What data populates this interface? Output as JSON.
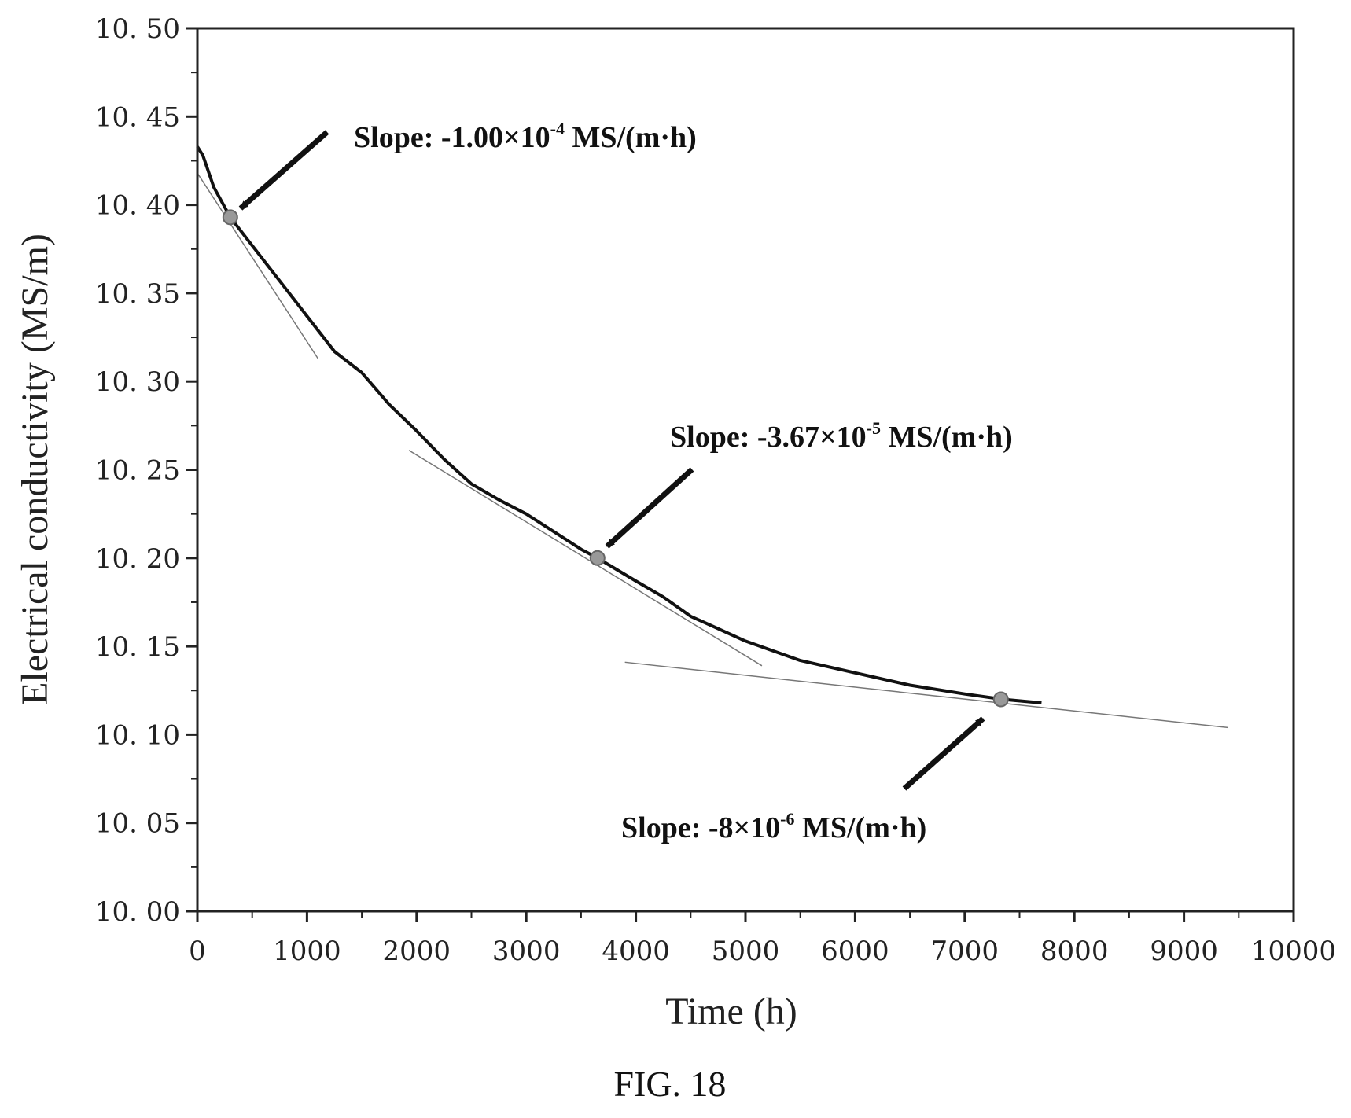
{
  "chart_data": {
    "type": "line",
    "title": "",
    "caption": "FIG. 18",
    "xlabel": "Time (h)",
    "ylabel": "Electrical conductivity (MS/m)",
    "xlim": [
      0,
      10000
    ],
    "ylim": [
      10.0,
      10.5
    ],
    "x_ticks": [
      0,
      1000,
      2000,
      3000,
      4000,
      5000,
      6000,
      7000,
      8000,
      9000,
      10000
    ],
    "x_tick_labels": [
      "0",
      "1000",
      "2000",
      "3000",
      "4000",
      "5000",
      "6000",
      "7000",
      "8000",
      "9000",
      "10000"
    ],
    "y_ticks": [
      10.0,
      10.05,
      10.1,
      10.15,
      10.2,
      10.25,
      10.3,
      10.35,
      10.4,
      10.45,
      10.5
    ],
    "y_tick_labels": [
      "10. 00",
      "10. 05",
      "10. 10",
      "10. 15",
      "10. 20",
      "10. 25",
      "10. 30",
      "10. 35",
      "10. 40",
      "10. 45",
      "10. 50"
    ],
    "grid": false,
    "series": [
      {
        "x": [
          0,
          50,
          150,
          300,
          500,
          750,
          1000,
          1250,
          1500,
          1750,
          2000,
          2250,
          2500,
          2750,
          3000,
          3250,
          3500,
          3650,
          4000,
          4250,
          4500,
          4750,
          5000,
          5500,
          6000,
          6500,
          7000,
          7350,
          7700
        ],
        "y": [
          10.433,
          10.428,
          10.41,
          10.393,
          10.377,
          10.357,
          10.337,
          10.317,
          10.305,
          10.287,
          10.272,
          10.256,
          10.242,
          10.233,
          10.225,
          10.215,
          10.205,
          10.2,
          10.187,
          10.178,
          10.167,
          10.16,
          10.153,
          10.142,
          10.135,
          10.128,
          10.123,
          10.12,
          10.118
        ]
      }
    ],
    "tangent_lines": [
      {
        "x": [
          0,
          1100
        ],
        "y": [
          10.418,
          10.313
        ]
      },
      {
        "x": [
          1930,
          5150
        ],
        "y": [
          10.261,
          10.139
        ]
      },
      {
        "x": [
          3900,
          9400
        ],
        "y": [
          10.141,
          10.104
        ]
      }
    ],
    "points": [
      {
        "x": 300,
        "y": 10.393
      },
      {
        "x": 3650,
        "y": 10.2
      },
      {
        "x": 7330,
        "y": 10.12
      }
    ],
    "annotations": [
      {
        "prefix": "Slope: -1.00×10",
        "sup": "-4",
        "suffix": " MS/(m·h)"
      },
      {
        "prefix": "Slope: -3.67×10",
        "sup": "-5",
        "suffix": " MS/(m·h)"
      },
      {
        "prefix": "Slope: -8×10",
        "sup": "-6",
        "suffix": " MS/(m·h)"
      }
    ]
  }
}
